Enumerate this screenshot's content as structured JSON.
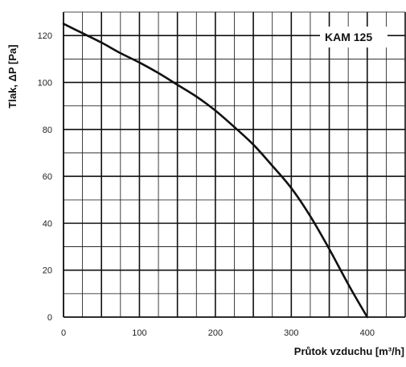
{
  "chart_data": {
    "type": "line",
    "title": "",
    "xlabel": "Průtok vzduchu [m³/h]",
    "ylabel": "Tlak, ΔP [Pa]",
    "xlim": [
      0,
      450
    ],
    "ylim": [
      0,
      130
    ],
    "x_ticks": [
      0,
      100,
      200,
      300,
      400
    ],
    "y_ticks": [
      0,
      20,
      40,
      60,
      80,
      100,
      120
    ],
    "grid": true,
    "series": [
      {
        "name": "KAM 125",
        "x": [
          0,
          25,
          50,
          75,
          100,
          125,
          150,
          175,
          200,
          225,
          250,
          275,
          300,
          325,
          350,
          375,
          400
        ],
        "y": [
          125,
          121,
          117,
          112.5,
          108.5,
          104,
          99,
          94,
          88,
          81,
          73.5,
          64.5,
          55,
          43,
          29,
          14,
          0
        ]
      }
    ],
    "legend": "top-right"
  },
  "colors": {
    "line": "#111111",
    "grid": "#111111",
    "background": "#ffffff"
  }
}
